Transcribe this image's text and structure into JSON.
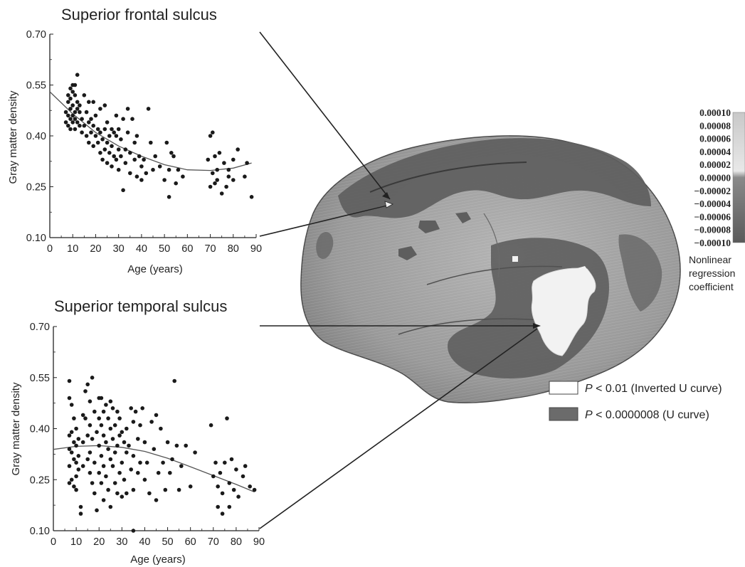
{
  "chart_data": [
    {
      "type": "scatter",
      "title": "Superior frontal sulcus",
      "xlabel": "Age (years)",
      "ylabel": "Gray matter density",
      "xlim": [
        0,
        90
      ],
      "ylim": [
        0.1,
        0.7
      ],
      "x_ticks": [
        "0",
        "10",
        "20",
        "30",
        "40",
        "50",
        "60",
        "70",
        "80",
        "90"
      ],
      "y_ticks": [
        "0.10",
        "0.25",
        "0.40",
        "0.55",
        "0.70"
      ],
      "curve": [
        [
          0,
          0.53
        ],
        [
          10,
          0.465
        ],
        [
          20,
          0.41
        ],
        [
          30,
          0.37
        ],
        [
          40,
          0.34
        ],
        [
          50,
          0.315
        ],
        [
          60,
          0.3
        ],
        [
          70,
          0.298
        ],
        [
          80,
          0.305
        ],
        [
          88,
          0.32
        ]
      ],
      "points": [
        [
          7,
          0.44
        ],
        [
          7,
          0.47
        ],
        [
          8,
          0.52
        ],
        [
          8,
          0.5
        ],
        [
          8,
          0.46
        ],
        [
          8,
          0.43
        ],
        [
          9,
          0.54
        ],
        [
          9,
          0.51
        ],
        [
          9,
          0.48
        ],
        [
          9,
          0.45
        ],
        [
          9,
          0.42
        ],
        [
          10,
          0.55
        ],
        [
          10,
          0.53
        ],
        [
          10,
          0.49
        ],
        [
          10,
          0.46
        ],
        [
          10,
          0.44
        ],
        [
          11,
          0.55
        ],
        [
          11,
          0.52
        ],
        [
          11,
          0.47
        ],
        [
          11,
          0.45
        ],
        [
          11,
          0.42
        ],
        [
          12,
          0.58
        ],
        [
          12,
          0.5
        ],
        [
          12,
          0.48
        ],
        [
          12,
          0.44
        ],
        [
          13,
          0.49
        ],
        [
          13,
          0.47
        ],
        [
          13,
          0.43
        ],
        [
          14,
          0.45
        ],
        [
          14,
          0.41
        ],
        [
          15,
          0.52
        ],
        [
          15,
          0.43
        ],
        [
          16,
          0.47
        ],
        [
          16,
          0.4
        ],
        [
          17,
          0.5
        ],
        [
          17,
          0.44
        ],
        [
          17,
          0.38
        ],
        [
          18,
          0.45
        ],
        [
          18,
          0.41
        ],
        [
          19,
          0.5
        ],
        [
          19,
          0.43
        ],
        [
          19,
          0.37
        ],
        [
          20,
          0.46
        ],
        [
          20,
          0.4
        ],
        [
          21,
          0.42
        ],
        [
          21,
          0.38
        ],
        [
          22,
          0.48
        ],
        [
          22,
          0.41
        ],
        [
          22,
          0.35
        ],
        [
          23,
          0.39
        ],
        [
          23,
          0.33
        ],
        [
          24,
          0.49
        ],
        [
          24,
          0.42
        ],
        [
          24,
          0.36
        ],
        [
          25,
          0.44
        ],
        [
          25,
          0.38
        ],
        [
          25,
          0.32
        ],
        [
          26,
          0.4
        ],
        [
          26,
          0.35
        ],
        [
          27,
          0.42
        ],
        [
          27,
          0.37
        ],
        [
          27,
          0.31
        ],
        [
          28,
          0.41
        ],
        [
          28,
          0.34
        ],
        [
          29,
          0.46
        ],
        [
          29,
          0.4
        ],
        [
          29,
          0.33
        ],
        [
          30,
          0.42
        ],
        [
          30,
          0.36
        ],
        [
          30,
          0.3
        ],
        [
          31,
          0.39
        ],
        [
          31,
          0.34
        ],
        [
          32,
          0.45
        ],
        [
          32,
          0.24
        ],
        [
          33,
          0.36
        ],
        [
          33,
          0.32
        ],
        [
          34,
          0.48
        ],
        [
          34,
          0.41
        ],
        [
          35,
          0.35
        ],
        [
          35,
          0.29
        ],
        [
          36,
          0.45
        ],
        [
          37,
          0.38
        ],
        [
          37,
          0.33
        ],
        [
          38,
          0.4
        ],
        [
          38,
          0.28
        ],
        [
          39,
          0.34
        ],
        [
          40,
          0.31
        ],
        [
          40,
          0.27
        ],
        [
          41,
          0.33
        ],
        [
          42,
          0.29
        ],
        [
          43,
          0.48
        ],
        [
          44,
          0.38
        ],
        [
          45,
          0.3
        ],
        [
          46,
          0.34
        ],
        [
          48,
          0.31
        ],
        [
          50,
          0.27
        ],
        [
          51,
          0.38
        ],
        [
          52,
          0.22
        ],
        [
          52,
          0.3
        ],
        [
          53,
          0.35
        ],
        [
          54,
          0.34
        ],
        [
          55,
          0.26
        ],
        [
          56,
          0.3
        ],
        [
          58,
          0.28
        ],
        [
          69,
          0.33
        ],
        [
          70,
          0.4
        ],
        [
          70,
          0.25
        ],
        [
          71,
          0.41
        ],
        [
          71,
          0.29
        ],
        [
          72,
          0.34
        ],
        [
          72,
          0.26
        ],
        [
          73,
          0.3
        ],
        [
          73,
          0.27
        ],
        [
          74,
          0.35
        ],
        [
          75,
          0.23
        ],
        [
          76,
          0.32
        ],
        [
          77,
          0.25
        ],
        [
          78,
          0.3
        ],
        [
          78,
          0.28
        ],
        [
          80,
          0.33
        ],
        [
          80,
          0.27
        ],
        [
          82,
          0.36
        ],
        [
          85,
          0.28
        ],
        [
          86,
          0.32
        ],
        [
          88,
          0.22
        ]
      ]
    },
    {
      "type": "scatter",
      "title": "Superior temporal sulcus",
      "xlabel": "Age (years)",
      "ylabel": "Gray matter density",
      "xlim": [
        0,
        90
      ],
      "ylim": [
        0.1,
        0.7
      ],
      "x_ticks": [
        "0",
        "10",
        "20",
        "30",
        "40",
        "50",
        "60",
        "70",
        "80",
        "90"
      ],
      "y_ticks": [
        "0.10",
        "0.25",
        "0.40",
        "0.55",
        "0.70"
      ],
      "curve": [
        [
          0,
          0.339
        ],
        [
          10,
          0.348
        ],
        [
          20,
          0.35
        ],
        [
          30,
          0.345
        ],
        [
          40,
          0.333
        ],
        [
          50,
          0.313
        ],
        [
          60,
          0.288
        ],
        [
          70,
          0.262
        ],
        [
          80,
          0.236
        ],
        [
          88,
          0.214
        ]
      ],
      "points": [
        [
          7,
          0.54
        ],
        [
          7,
          0.49
        ],
        [
          7,
          0.38
        ],
        [
          7,
          0.34
        ],
        [
          7,
          0.29
        ],
        [
          7,
          0.24
        ],
        [
          8,
          0.47
        ],
        [
          8,
          0.39
        ],
        [
          8,
          0.33
        ],
        [
          8,
          0.25
        ],
        [
          9,
          0.43
        ],
        [
          9,
          0.36
        ],
        [
          9,
          0.31
        ],
        [
          9,
          0.23
        ],
        [
          10,
          0.4
        ],
        [
          10,
          0.35
        ],
        [
          10,
          0.3
        ],
        [
          10,
          0.26
        ],
        [
          10,
          0.22
        ],
        [
          11,
          0.37
        ],
        [
          11,
          0.32
        ],
        [
          11,
          0.28
        ],
        [
          12,
          0.17
        ],
        [
          12,
          0.15
        ],
        [
          13,
          0.44
        ],
        [
          13,
          0.36
        ],
        [
          13,
          0.29
        ],
        [
          14,
          0.51
        ],
        [
          14,
          0.43
        ],
        [
          15,
          0.53
        ],
        [
          15,
          0.38
        ],
        [
          15,
          0.31
        ],
        [
          16,
          0.48
        ],
        [
          16,
          0.41
        ],
        [
          16,
          0.33
        ],
        [
          16,
          0.27
        ],
        [
          17,
          0.55
        ],
        [
          17,
          0.37
        ],
        [
          17,
          0.24
        ],
        [
          18,
          0.45
        ],
        [
          18,
          0.3
        ],
        [
          18,
          0.21
        ],
        [
          19,
          0.39
        ],
        [
          19,
          0.16
        ],
        [
          20,
          0.49
        ],
        [
          20,
          0.43
        ],
        [
          20,
          0.35
        ],
        [
          20,
          0.27
        ],
        [
          21,
          0.49
        ],
        [
          21,
          0.41
        ],
        [
          21,
          0.32
        ],
        [
          21,
          0.24
        ],
        [
          22,
          0.45
        ],
        [
          22,
          0.38
        ],
        [
          22,
          0.29
        ],
        [
          22,
          0.19
        ],
        [
          23,
          0.47
        ],
        [
          23,
          0.36
        ],
        [
          23,
          0.26
        ],
        [
          24,
          0.43
        ],
        [
          24,
          0.34
        ],
        [
          24,
          0.22
        ],
        [
          25,
          0.48
        ],
        [
          25,
          0.4
        ],
        [
          25,
          0.31
        ],
        [
          25,
          0.17
        ],
        [
          26,
          0.46
        ],
        [
          26,
          0.37
        ],
        [
          26,
          0.29
        ],
        [
          27,
          0.41
        ],
        [
          27,
          0.33
        ],
        [
          27,
          0.24
        ],
        [
          28,
          0.45
        ],
        [
          28,
          0.35
        ],
        [
          28,
          0.21
        ],
        [
          29,
          0.43
        ],
        [
          29,
          0.38
        ],
        [
          29,
          0.27
        ],
        [
          30,
          0.39
        ],
        [
          30,
          0.3
        ],
        [
          30,
          0.2
        ],
        [
          31,
          0.36
        ],
        [
          31,
          0.25
        ],
        [
          32,
          0.4
        ],
        [
          32,
          0.33
        ],
        [
          32,
          0.21
        ],
        [
          33,
          0.35
        ],
        [
          34,
          0.46
        ],
        [
          34,
          0.28
        ],
        [
          35,
          0.42
        ],
        [
          35,
          0.32
        ],
        [
          35,
          0.22
        ],
        [
          35,
          0.1
        ],
        [
          36,
          0.45
        ],
        [
          37,
          0.37
        ],
        [
          37,
          0.27
        ],
        [
          38,
          0.41
        ],
        [
          38,
          0.3
        ],
        [
          39,
          0.46
        ],
        [
          40,
          0.36
        ],
        [
          40,
          0.25
        ],
        [
          41,
          0.3
        ],
        [
          42,
          0.21
        ],
        [
          43,
          0.42
        ],
        [
          44,
          0.34
        ],
        [
          45,
          0.44
        ],
        [
          45,
          0.19
        ],
        [
          46,
          0.27
        ],
        [
          47,
          0.4
        ],
        [
          48,
          0.3
        ],
        [
          49,
          0.22
        ],
        [
          50,
          0.36
        ],
        [
          51,
          0.27
        ],
        [
          52,
          0.31
        ],
        [
          53,
          0.54
        ],
        [
          54,
          0.35
        ],
        [
          55,
          0.22
        ],
        [
          56,
          0.29
        ],
        [
          58,
          0.35
        ],
        [
          60,
          0.23
        ],
        [
          62,
          0.33
        ],
        [
          69,
          0.41
        ],
        [
          70,
          0.26
        ],
        [
          71,
          0.3
        ],
        [
          72,
          0.23
        ],
        [
          72,
          0.17
        ],
        [
          73,
          0.27
        ],
        [
          74,
          0.21
        ],
        [
          74,
          0.15
        ],
        [
          75,
          0.3
        ],
        [
          76,
          0.43
        ],
        [
          77,
          0.24
        ],
        [
          77,
          0.17
        ],
        [
          78,
          0.31
        ],
        [
          79,
          0.22
        ],
        [
          80,
          0.28
        ],
        [
          81,
          0.2
        ],
        [
          83,
          0.26
        ],
        [
          84,
          0.29
        ],
        [
          86,
          0.23
        ],
        [
          88,
          0.22
        ]
      ]
    }
  ],
  "colorbar": {
    "labels": [
      "0.00010",
      "0.00008",
      "0.00006",
      "0.00004",
      "0.00002",
      "0.00000",
      "−0.00002",
      "−0.00004",
      "−0.00006",
      "−0.00008",
      "−0.00010"
    ],
    "caption_lines": [
      "Nonlinear",
      "regression",
      "coefficient"
    ]
  },
  "legend": [
    {
      "prefix": "P",
      "text": " < 0.01 (Inverted U curve)",
      "color": "#ffffff"
    },
    {
      "prefix": "P",
      "text": " < 0.0000008 (U curve)",
      "color": "#6b6b6b"
    }
  ],
  "colors": {
    "dark_region": "#5e5e5e",
    "brain_base": "#9a9a9a",
    "light_region": "#f2f2f2",
    "points": "#1a1a1a"
  }
}
